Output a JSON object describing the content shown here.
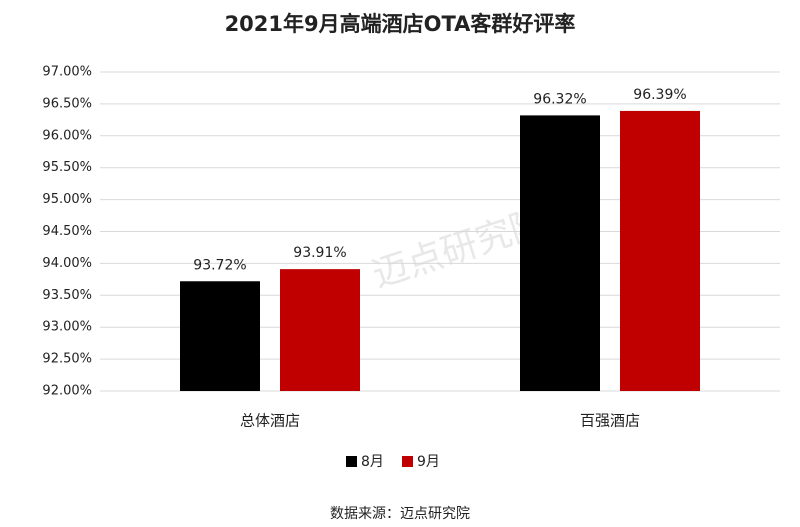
{
  "chart_data": {
    "type": "bar",
    "title": "2021年9月高端酒店OTA客群好评率",
    "categories": [
      "总体酒店",
      "百强酒店"
    ],
    "series": [
      {
        "name": "8月",
        "color": "#000000",
        "values": [
          93.72,
          96.32
        ],
        "value_labels": [
          "93.72%",
          "96.32%"
        ]
      },
      {
        "name": "9月",
        "color": "#c00000",
        "values": [
          93.91,
          96.39
        ],
        "value_labels": [
          "93.91%",
          "96.39%"
        ]
      }
    ],
    "ylim": [
      92,
      97
    ],
    "yticks": [
      {
        "value": 92,
        "label": "92.00%"
      },
      {
        "value": 92.5,
        "label": "92.50%"
      },
      {
        "value": 93,
        "label": "93.00%"
      },
      {
        "value": 93.5,
        "label": "93.50%"
      },
      {
        "value": 94,
        "label": "94.00%"
      },
      {
        "value": 94.5,
        "label": "94.50%"
      },
      {
        "value": 95,
        "label": "95.00%"
      },
      {
        "value": 95.5,
        "label": "95.50%"
      },
      {
        "value": 96,
        "label": "96.00%"
      },
      {
        "value": 96.5,
        "label": "96.50%"
      },
      {
        "value": 97,
        "label": "97.00%"
      }
    ],
    "grid": true,
    "legend": "bottom",
    "watermark": "迈点研究院",
    "source": "数据来源：迈点研究院"
  }
}
